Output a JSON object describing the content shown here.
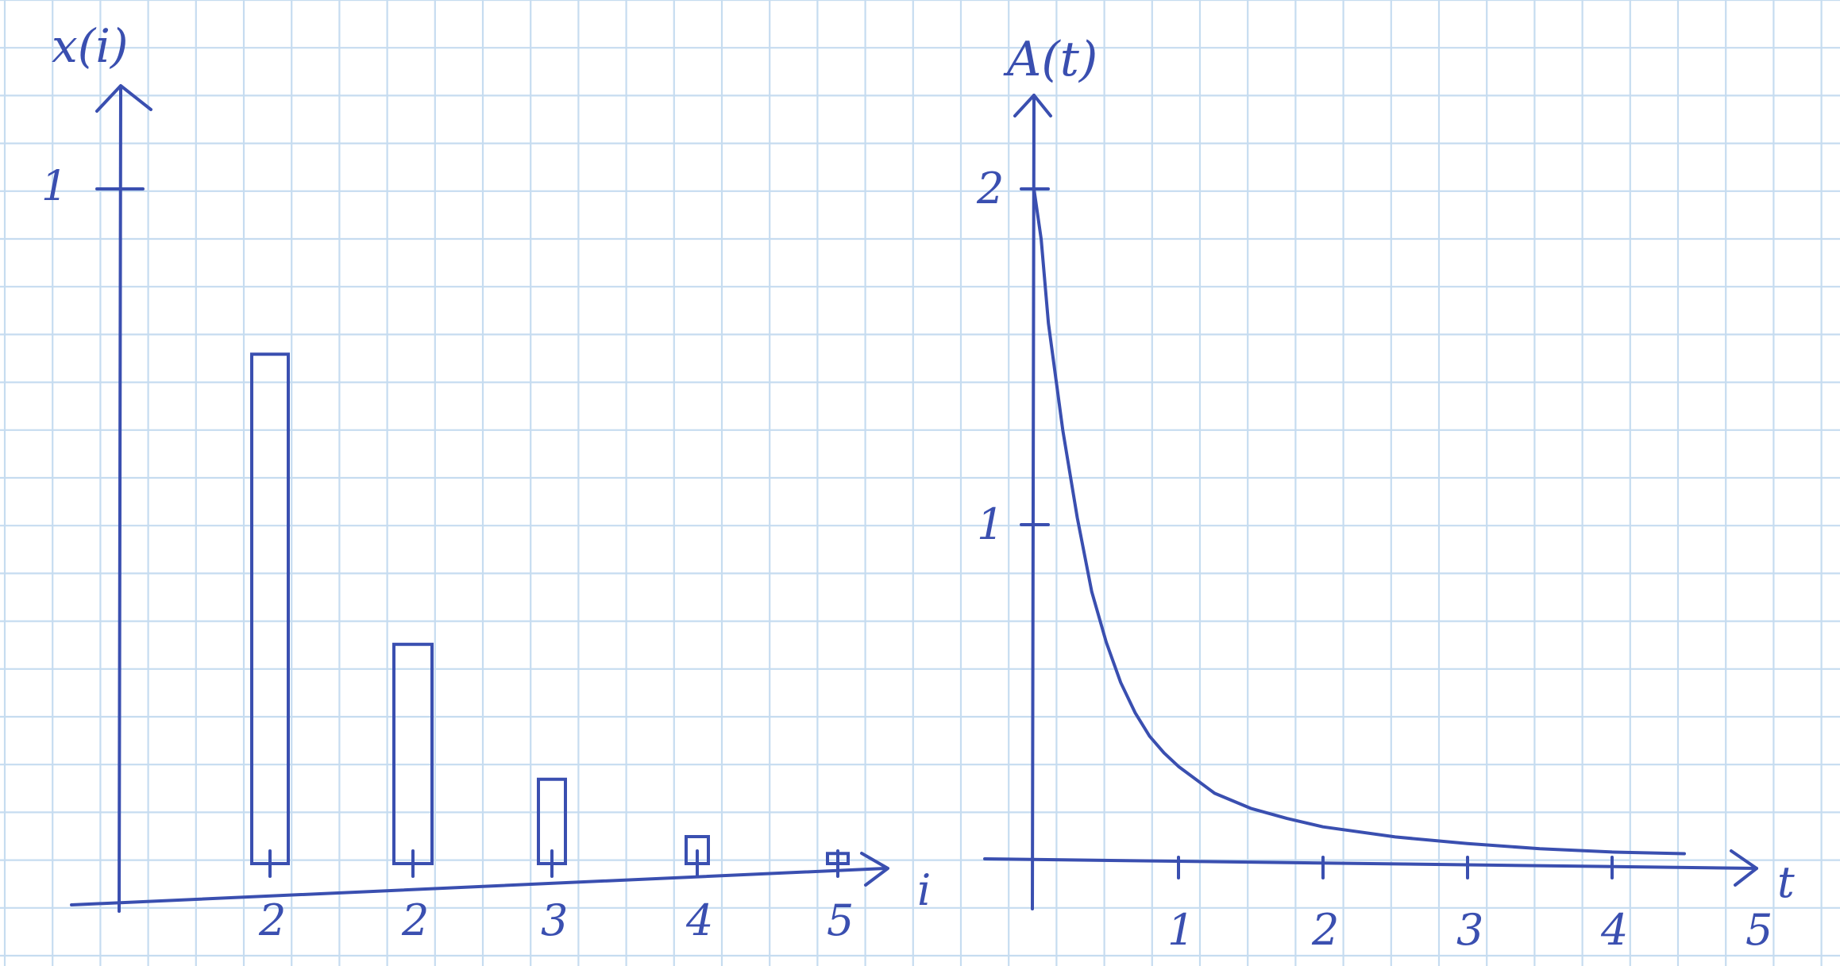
{
  "colors": {
    "ink": "#3a4fb0",
    "grid": "#c6dcf0",
    "paper": "#ffffff"
  },
  "chart_data": [
    {
      "type": "bar",
      "ylabel": "x(i)",
      "xlabel": "i",
      "categories": [
        "2",
        "2",
        "3",
        "4",
        "5"
      ],
      "values": [
        0.755,
        0.325,
        0.125,
        0.04,
        0.015
      ],
      "ylim": [
        0,
        1.0
      ],
      "yticks": [
        {
          "value": 1,
          "label": "1"
        }
      ],
      "grid": true
    },
    {
      "type": "line",
      "ylabel": "A(t)",
      "xlabel": "t",
      "x": [
        0,
        0.05,
        0.1,
        0.2,
        0.3,
        0.4,
        0.5,
        0.6,
        0.7,
        0.8,
        0.9,
        1.0,
        1.25,
        1.5,
        1.75,
        2.0,
        2.5,
        3.0,
        3.5,
        4.0,
        4.5
      ],
      "y": [
        2.0,
        1.85,
        1.6,
        1.28,
        1.02,
        0.8,
        0.65,
        0.53,
        0.44,
        0.37,
        0.32,
        0.28,
        0.2,
        0.155,
        0.125,
        0.1,
        0.07,
        0.05,
        0.035,
        0.025,
        0.02
      ],
      "xlim": [
        0,
        5.2
      ],
      "ylim": [
        0,
        2.6
      ],
      "xticks": [
        {
          "value": 1,
          "label": "1"
        },
        {
          "value": 2,
          "label": "2"
        },
        {
          "value": 3,
          "label": "3"
        },
        {
          "value": 4,
          "label": "4"
        },
        {
          "value": 5,
          "label": "5"
        }
      ],
      "yticks": [
        {
          "value": 1,
          "label": "1"
        },
        {
          "value": 2,
          "label": "2"
        }
      ],
      "grid": true
    }
  ]
}
